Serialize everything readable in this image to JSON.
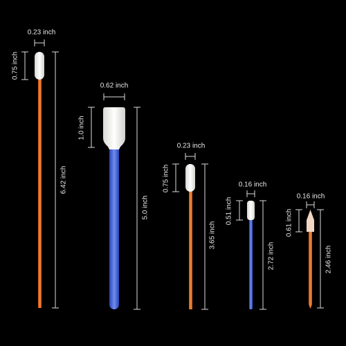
{
  "swabs": [
    {
      "head_width": "0.23 inch",
      "head_length": "0.75 inch",
      "total_length": "6.42 inch"
    },
    {
      "head_width": "0.62 inch",
      "head_length": "1.0 inch",
      "total_length": "5.0 inch"
    },
    {
      "head_width": "0.23 inch",
      "head_length": "0.75 inch",
      "total_length": "3.65 inch"
    },
    {
      "head_width": "0.16 inch",
      "head_length": "0.51 inch",
      "total_length": "2.72 inch"
    },
    {
      "head_width": "0.16 inch",
      "head_length": "0.61 inch",
      "total_length": "2.46 inch"
    }
  ]
}
